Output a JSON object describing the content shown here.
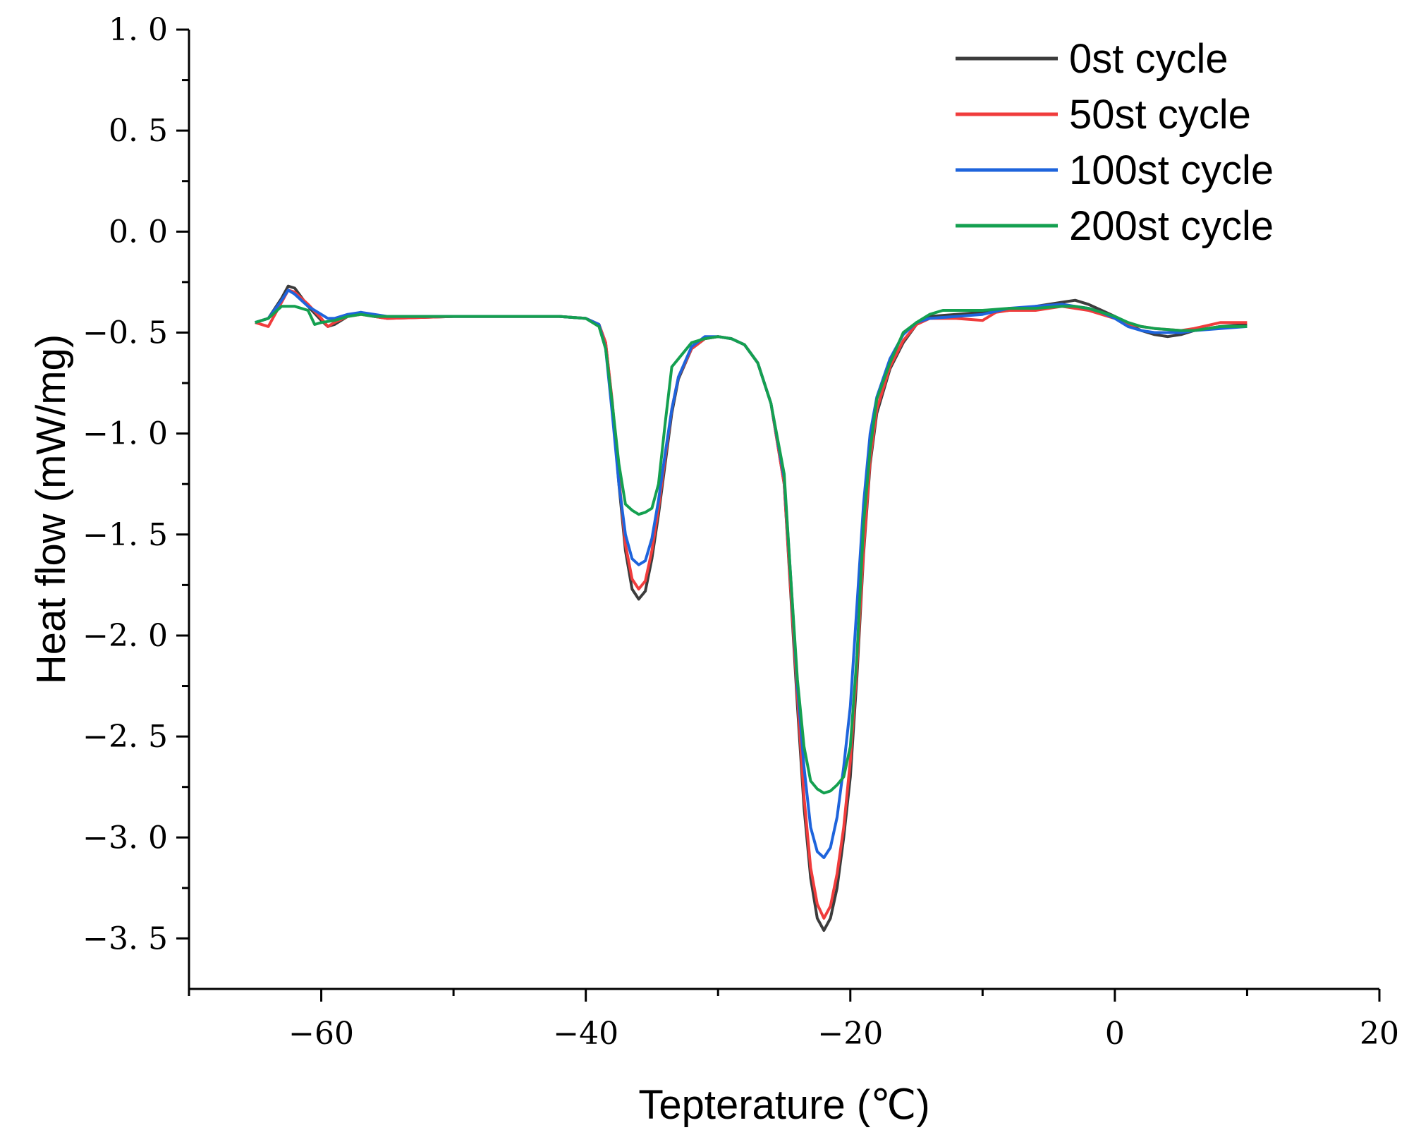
{
  "chart_data": {
    "type": "line",
    "title": "",
    "xlabel": "Tepterature (℃)",
    "ylabel": "Heat flow (mW/mg)",
    "xlim": [
      -70,
      20
    ],
    "ylim": [
      -3.75,
      1.0
    ],
    "xticks": [
      -60,
      -40,
      -20,
      0,
      20
    ],
    "xtick_labels": [
      "−60",
      "−40",
      "−20",
      "0",
      "20"
    ],
    "yticks": [
      1.0,
      0.5,
      0.0,
      -0.5,
      -1.0,
      -1.5,
      -2.0,
      -2.5,
      -3.0,
      -3.5
    ],
    "ytick_labels": [
      "1. 0",
      "0. 5",
      "0. 0",
      "−0. 5",
      "−1. 0",
      "−1. 5",
      "−2. 0",
      "−2. 5",
      "−3. 0",
      "−3. 5"
    ],
    "grid": false,
    "legend_position": "top-right",
    "series": [
      {
        "name": "0st cycle",
        "color": "#3c3c3c",
        "points": [
          [
            -65,
            -0.45
          ],
          [
            -64,
            -0.43
          ],
          [
            -63,
            -0.33
          ],
          [
            -62.5,
            -0.27
          ],
          [
            -62,
            -0.28
          ],
          [
            -61,
            -0.37
          ],
          [
            -60,
            -0.44
          ],
          [
            -59.5,
            -0.47
          ],
          [
            -59,
            -0.46
          ],
          [
            -58,
            -0.42
          ],
          [
            -57,
            -0.4
          ],
          [
            -56,
            -0.42
          ],
          [
            -55,
            -0.43
          ],
          [
            -50,
            -0.42
          ],
          [
            -45,
            -0.42
          ],
          [
            -42,
            -0.42
          ],
          [
            -40,
            -0.43
          ],
          [
            -39,
            -0.46
          ],
          [
            -38.5,
            -0.55
          ],
          [
            -38,
            -0.85
          ],
          [
            -37.5,
            -1.25
          ],
          [
            -37,
            -1.58
          ],
          [
            -36.5,
            -1.77
          ],
          [
            -36,
            -1.82
          ],
          [
            -35.5,
            -1.78
          ],
          [
            -35,
            -1.62
          ],
          [
            -34.5,
            -1.4
          ],
          [
            -34,
            -1.15
          ],
          [
            -33.5,
            -0.9
          ],
          [
            -33,
            -0.73
          ],
          [
            -32,
            -0.58
          ],
          [
            -31,
            -0.53
          ],
          [
            -30,
            -0.52
          ],
          [
            -29,
            -0.53
          ],
          [
            -28,
            -0.56
          ],
          [
            -27,
            -0.65
          ],
          [
            -26,
            -0.85
          ],
          [
            -25,
            -1.25
          ],
          [
            -24.5,
            -1.8
          ],
          [
            -24,
            -2.35
          ],
          [
            -23.5,
            -2.85
          ],
          [
            -23,
            -3.2
          ],
          [
            -22.5,
            -3.4
          ],
          [
            -22,
            -3.46
          ],
          [
            -21.5,
            -3.4
          ],
          [
            -21,
            -3.25
          ],
          [
            -20.5,
            -3.0
          ],
          [
            -20,
            -2.7
          ],
          [
            -19.5,
            -2.2
          ],
          [
            -19,
            -1.6
          ],
          [
            -18.5,
            -1.15
          ],
          [
            -18,
            -0.9
          ],
          [
            -17,
            -0.68
          ],
          [
            -16,
            -0.55
          ],
          [
            -15,
            -0.46
          ],
          [
            -14,
            -0.42
          ],
          [
            -12,
            -0.41
          ],
          [
            -10,
            -0.4
          ],
          [
            -8,
            -0.39
          ],
          [
            -6,
            -0.37
          ],
          [
            -4,
            -0.35
          ],
          [
            -3,
            -0.34
          ],
          [
            -2,
            -0.36
          ],
          [
            -1,
            -0.39
          ],
          [
            0,
            -0.42
          ],
          [
            1,
            -0.46
          ],
          [
            2,
            -0.49
          ],
          [
            3,
            -0.51
          ],
          [
            4,
            -0.52
          ],
          [
            5,
            -0.51
          ],
          [
            6,
            -0.49
          ],
          [
            8,
            -0.47
          ],
          [
            10,
            -0.46
          ]
        ]
      },
      {
        "name": "50st cycle",
        "color": "#f03c3c",
        "points": [
          [
            -65,
            -0.45
          ],
          [
            -64,
            -0.47
          ],
          [
            -63,
            -0.35
          ],
          [
            -62.5,
            -0.29
          ],
          [
            -62,
            -0.3
          ],
          [
            -61,
            -0.36
          ],
          [
            -60,
            -0.43
          ],
          [
            -59.5,
            -0.47
          ],
          [
            -59,
            -0.45
          ],
          [
            -58,
            -0.42
          ],
          [
            -57,
            -0.41
          ],
          [
            -56,
            -0.42
          ],
          [
            -55,
            -0.43
          ],
          [
            -50,
            -0.42
          ],
          [
            -45,
            -0.42
          ],
          [
            -42,
            -0.42
          ],
          [
            -40,
            -0.43
          ],
          [
            -39,
            -0.46
          ],
          [
            -38.5,
            -0.55
          ],
          [
            -38,
            -0.84
          ],
          [
            -37.5,
            -1.22
          ],
          [
            -37,
            -1.55
          ],
          [
            -36.5,
            -1.72
          ],
          [
            -36,
            -1.77
          ],
          [
            -35.5,
            -1.73
          ],
          [
            -35,
            -1.58
          ],
          [
            -34.5,
            -1.37
          ],
          [
            -34,
            -1.12
          ],
          [
            -33.5,
            -0.88
          ],
          [
            -33,
            -0.72
          ],
          [
            -32,
            -0.58
          ],
          [
            -31,
            -0.53
          ],
          [
            -30,
            -0.52
          ],
          [
            -29,
            -0.53
          ],
          [
            -28,
            -0.56
          ],
          [
            -27,
            -0.65
          ],
          [
            -26,
            -0.85
          ],
          [
            -25,
            -1.25
          ],
          [
            -24.5,
            -1.78
          ],
          [
            -24,
            -2.3
          ],
          [
            -23.5,
            -2.8
          ],
          [
            -23,
            -3.15
          ],
          [
            -22.5,
            -3.33
          ],
          [
            -22,
            -3.4
          ],
          [
            -21.5,
            -3.34
          ],
          [
            -21,
            -3.18
          ],
          [
            -20.5,
            -2.95
          ],
          [
            -20,
            -2.62
          ],
          [
            -19.5,
            -2.15
          ],
          [
            -19,
            -1.58
          ],
          [
            -18.5,
            -1.13
          ],
          [
            -18,
            -0.88
          ],
          [
            -17,
            -0.67
          ],
          [
            -16,
            -0.54
          ],
          [
            -15,
            -0.46
          ],
          [
            -14,
            -0.43
          ],
          [
            -12,
            -0.43
          ],
          [
            -10,
            -0.44
          ],
          [
            -9,
            -0.4
          ],
          [
            -8,
            -0.39
          ],
          [
            -6,
            -0.39
          ],
          [
            -4,
            -0.37
          ],
          [
            -3,
            -0.38
          ],
          [
            -2,
            -0.39
          ],
          [
            -1,
            -0.41
          ],
          [
            0,
            -0.43
          ],
          [
            1,
            -0.46
          ],
          [
            2,
            -0.47
          ],
          [
            3,
            -0.48
          ],
          [
            5,
            -0.49
          ],
          [
            6,
            -0.48
          ],
          [
            8,
            -0.45
          ],
          [
            10,
            -0.45
          ]
        ]
      },
      {
        "name": "100st cycle",
        "color": "#1e64dc",
        "points": [
          [
            -65,
            -0.45
          ],
          [
            -64,
            -0.43
          ],
          [
            -63,
            -0.34
          ],
          [
            -62.5,
            -0.29
          ],
          [
            -62,
            -0.31
          ],
          [
            -61,
            -0.37
          ],
          [
            -60,
            -0.41
          ],
          [
            -59.5,
            -0.43
          ],
          [
            -59,
            -0.43
          ],
          [
            -58,
            -0.41
          ],
          [
            -57,
            -0.4
          ],
          [
            -56,
            -0.41
          ],
          [
            -55,
            -0.42
          ],
          [
            -50,
            -0.42
          ],
          [
            -45,
            -0.42
          ],
          [
            -42,
            -0.42
          ],
          [
            -40,
            -0.43
          ],
          [
            -39,
            -0.46
          ],
          [
            -38.5,
            -0.58
          ],
          [
            -38,
            -0.9
          ],
          [
            -37.5,
            -1.25
          ],
          [
            -37,
            -1.5
          ],
          [
            -36.5,
            -1.62
          ],
          [
            -36,
            -1.65
          ],
          [
            -35.5,
            -1.63
          ],
          [
            -35,
            -1.52
          ],
          [
            -34.5,
            -1.33
          ],
          [
            -34,
            -1.1
          ],
          [
            -33.5,
            -0.88
          ],
          [
            -33,
            -0.72
          ],
          [
            -32,
            -0.57
          ],
          [
            -31,
            -0.52
          ],
          [
            -30,
            -0.52
          ],
          [
            -29,
            -0.53
          ],
          [
            -28,
            -0.56
          ],
          [
            -27,
            -0.65
          ],
          [
            -26,
            -0.85
          ],
          [
            -25,
            -1.22
          ],
          [
            -24.5,
            -1.72
          ],
          [
            -24,
            -2.25
          ],
          [
            -23.5,
            -2.65
          ],
          [
            -23,
            -2.95
          ],
          [
            -22.5,
            -3.07
          ],
          [
            -22,
            -3.1
          ],
          [
            -21.5,
            -3.05
          ],
          [
            -21,
            -2.9
          ],
          [
            -20.5,
            -2.65
          ],
          [
            -20,
            -2.35
          ],
          [
            -19.5,
            -1.85
          ],
          [
            -19,
            -1.35
          ],
          [
            -18.5,
            -1.0
          ],
          [
            -18,
            -0.82
          ],
          [
            -17,
            -0.63
          ],
          [
            -16,
            -0.51
          ],
          [
            -15,
            -0.45
          ],
          [
            -14,
            -0.43
          ],
          [
            -12,
            -0.42
          ],
          [
            -10,
            -0.41
          ],
          [
            -8,
            -0.38
          ],
          [
            -6,
            -0.37
          ],
          [
            -4,
            -0.36
          ],
          [
            -3,
            -0.37
          ],
          [
            -2,
            -0.38
          ],
          [
            -1,
            -0.4
          ],
          [
            0,
            -0.43
          ],
          [
            1,
            -0.47
          ],
          [
            2,
            -0.49
          ],
          [
            3,
            -0.5
          ],
          [
            5,
            -0.5
          ],
          [
            6,
            -0.49
          ],
          [
            8,
            -0.48
          ],
          [
            10,
            -0.47
          ]
        ]
      },
      {
        "name": "200st cycle",
        "color": "#14a050",
        "points": [
          [
            -65,
            -0.45
          ],
          [
            -64,
            -0.43
          ],
          [
            -63,
            -0.37
          ],
          [
            -62.5,
            -0.37
          ],
          [
            -62,
            -0.37
          ],
          [
            -61,
            -0.39
          ],
          [
            -60.5,
            -0.46
          ],
          [
            -60,
            -0.45
          ],
          [
            -59,
            -0.44
          ],
          [
            -58,
            -0.42
          ],
          [
            -57,
            -0.41
          ],
          [
            -56,
            -0.42
          ],
          [
            -55,
            -0.42
          ],
          [
            -50,
            -0.42
          ],
          [
            -45,
            -0.42
          ],
          [
            -42,
            -0.42
          ],
          [
            -40,
            -0.43
          ],
          [
            -39,
            -0.47
          ],
          [
            -38.5,
            -0.58
          ],
          [
            -38,
            -0.85
          ],
          [
            -37.5,
            -1.15
          ],
          [
            -37,
            -1.35
          ],
          [
            -36.5,
            -1.38
          ],
          [
            -36,
            -1.4
          ],
          [
            -35.5,
            -1.39
          ],
          [
            -35,
            -1.37
          ],
          [
            -34.5,
            -1.25
          ],
          [
            -34,
            -0.95
          ],
          [
            -33.5,
            -0.67
          ],
          [
            -33,
            -0.63
          ],
          [
            -32,
            -0.55
          ],
          [
            -31,
            -0.53
          ],
          [
            -30,
            -0.52
          ],
          [
            -29,
            -0.53
          ],
          [
            -28,
            -0.56
          ],
          [
            -27,
            -0.65
          ],
          [
            -26,
            -0.85
          ],
          [
            -25,
            -1.2
          ],
          [
            -24.5,
            -1.72
          ],
          [
            -24,
            -2.22
          ],
          [
            -23.5,
            -2.55
          ],
          [
            -23,
            -2.72
          ],
          [
            -22.5,
            -2.76
          ],
          [
            -22,
            -2.78
          ],
          [
            -21.5,
            -2.77
          ],
          [
            -21,
            -2.74
          ],
          [
            -20.5,
            -2.7
          ],
          [
            -20,
            -2.55
          ],
          [
            -19.5,
            -2.1
          ],
          [
            -19,
            -1.45
          ],
          [
            -18.5,
            -1.08
          ],
          [
            -18,
            -0.83
          ],
          [
            -17,
            -0.65
          ],
          [
            -16,
            -0.5
          ],
          [
            -15,
            -0.45
          ],
          [
            -14,
            -0.41
          ],
          [
            -13,
            -0.39
          ],
          [
            -10,
            -0.39
          ],
          [
            -8,
            -0.38
          ],
          [
            -6,
            -0.38
          ],
          [
            -4,
            -0.37
          ],
          [
            -3,
            -0.37
          ],
          [
            -2,
            -0.38
          ],
          [
            -1,
            -0.4
          ],
          [
            0,
            -0.42
          ],
          [
            1,
            -0.45
          ],
          [
            2,
            -0.47
          ],
          [
            3,
            -0.48
          ],
          [
            5,
            -0.49
          ],
          [
            6,
            -0.49
          ],
          [
            8,
            -0.47
          ],
          [
            10,
            -0.47
          ]
        ]
      }
    ]
  }
}
